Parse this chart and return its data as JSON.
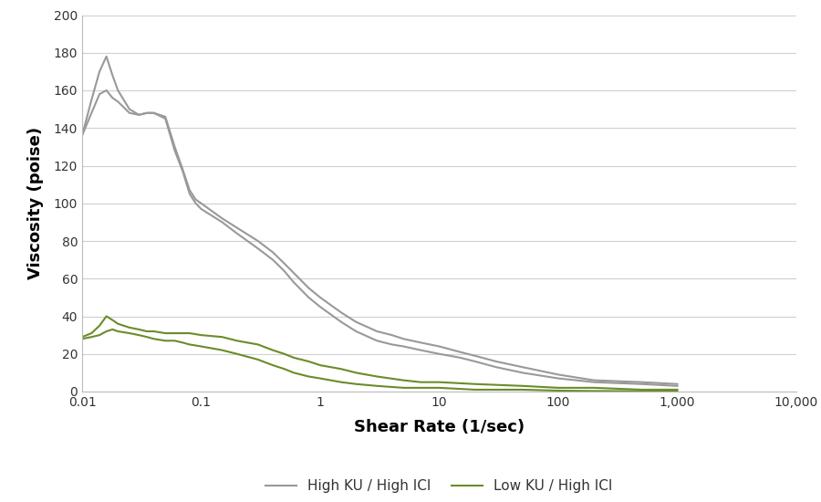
{
  "title": "",
  "xlabel": "Shear Rate (1/sec)",
  "ylabel": "Viscosity (poise)",
  "xlim": [
    0.01,
    10000
  ],
  "ylim": [
    0,
    200
  ],
  "yticks": [
    0,
    20,
    40,
    60,
    80,
    100,
    120,
    140,
    160,
    180,
    200
  ],
  "xtick_labels": [
    "0.01",
    "0.1",
    "1",
    "10",
    "100",
    "1,000",
    "10,000"
  ],
  "xtick_values": [
    0.01,
    0.1,
    1,
    10,
    100,
    1000,
    10000
  ],
  "high_ku_color": "#999999",
  "low_ku_color": "#6b8c2a",
  "legend_labels": [
    "High KU / High ICI",
    "Low KU / High ICI"
  ],
  "background_color": "#ffffff",
  "grid_color": "#d0d0d0",
  "high_ku_upper_x": [
    0.01,
    0.012,
    0.014,
    0.016,
    0.018,
    0.02,
    0.025,
    0.03,
    0.035,
    0.04,
    0.05,
    0.06,
    0.07,
    0.08,
    0.09,
    0.1,
    0.15,
    0.2,
    0.3,
    0.4,
    0.5,
    0.6,
    0.8,
    1.0,
    1.5,
    2.0,
    3.0,
    4.0,
    5.0,
    7.0,
    10.0,
    15.0,
    20.0,
    30.0,
    50.0,
    100.0,
    200.0,
    500.0,
    1000.0
  ],
  "high_ku_upper_y": [
    136,
    155,
    170,
    178,
    168,
    160,
    150,
    147,
    148,
    148,
    146,
    130,
    118,
    107,
    102,
    100,
    92,
    87,
    80,
    74,
    68,
    63,
    55,
    50,
    42,
    37,
    32,
    30,
    28,
    26,
    24,
    21,
    19,
    16,
    13,
    9,
    6,
    5,
    4
  ],
  "high_ku_lower_x": [
    0.01,
    0.012,
    0.014,
    0.016,
    0.018,
    0.02,
    0.025,
    0.03,
    0.035,
    0.04,
    0.05,
    0.06,
    0.07,
    0.08,
    0.09,
    0.1,
    0.15,
    0.2,
    0.3,
    0.4,
    0.5,
    0.6,
    0.8,
    1.0,
    1.5,
    2.0,
    3.0,
    4.0,
    5.0,
    7.0,
    10.0,
    15.0,
    20.0,
    30.0,
    50.0,
    100.0,
    200.0,
    500.0,
    1000.0
  ],
  "high_ku_lower_y": [
    136,
    148,
    158,
    160,
    156,
    154,
    148,
    147,
    148,
    148,
    145,
    128,
    117,
    105,
    100,
    97,
    90,
    84,
    76,
    70,
    64,
    58,
    50,
    45,
    37,
    32,
    27,
    25,
    24,
    22,
    20,
    18,
    16,
    13,
    10,
    7,
    5,
    4,
    3
  ],
  "low_ku_upper_x": [
    0.01,
    0.012,
    0.014,
    0.016,
    0.018,
    0.02,
    0.025,
    0.03,
    0.035,
    0.04,
    0.05,
    0.06,
    0.07,
    0.08,
    0.1,
    0.15,
    0.2,
    0.3,
    0.4,
    0.5,
    0.6,
    0.8,
    1.0,
    1.5,
    2.0,
    3.0,
    5.0,
    7.0,
    10.0,
    20.0,
    50.0,
    100.0,
    200.0,
    500.0,
    1000.0
  ],
  "low_ku_upper_y": [
    29,
    31,
    35,
    40,
    38,
    36,
    34,
    33,
    32,
    32,
    31,
    31,
    31,
    31,
    30,
    29,
    27,
    25,
    22,
    20,
    18,
    16,
    14,
    12,
    10,
    8,
    6,
    5,
    5,
    4,
    3,
    2,
    2,
    1,
    1
  ],
  "low_ku_lower_x": [
    0.01,
    0.012,
    0.014,
    0.016,
    0.018,
    0.02,
    0.025,
    0.03,
    0.035,
    0.04,
    0.05,
    0.06,
    0.07,
    0.08,
    0.1,
    0.15,
    0.2,
    0.3,
    0.4,
    0.5,
    0.6,
    0.8,
    1.0,
    1.5,
    2.0,
    3.0,
    5.0,
    7.0,
    10.0,
    20.0,
    50.0,
    100.0,
    200.0,
    500.0,
    1000.0
  ],
  "low_ku_lower_y": [
    28,
    29,
    30,
    32,
    33,
    32,
    31,
    30,
    29,
    28,
    27,
    27,
    26,
    25,
    24,
    22,
    20,
    17,
    14,
    12,
    10,
    8,
    7,
    5,
    4,
    3,
    2,
    2,
    2,
    1,
    1,
    0.5,
    0.3,
    0.2,
    0.1
  ]
}
